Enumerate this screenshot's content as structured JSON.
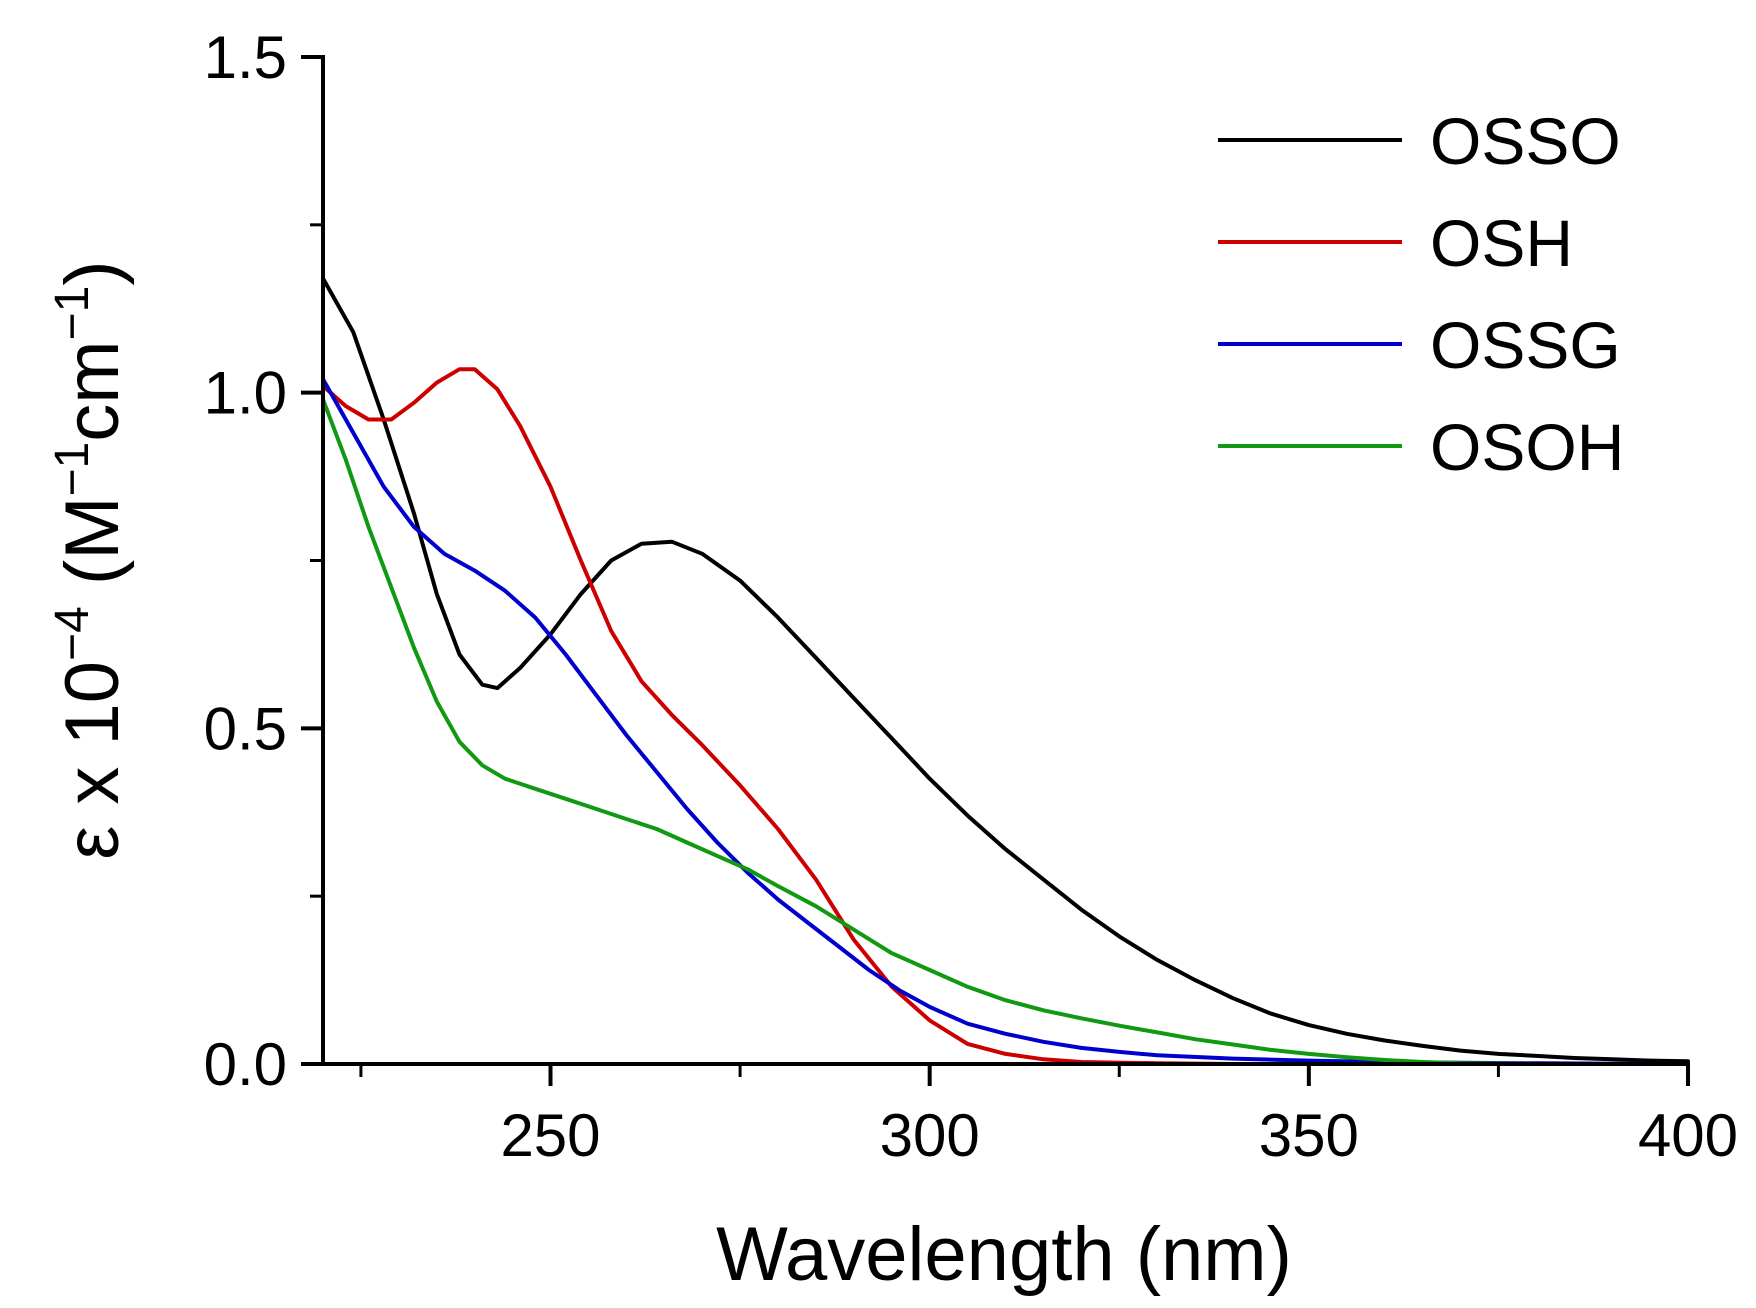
{
  "chart_data": {
    "type": "line",
    "title": "",
    "xlabel": "Wavelength (nm)",
    "ylabel": {
      "prefix": "ε x 10",
      "exp": "−4",
      "unit_open": " (M",
      "unit_exp1": "−1",
      "unit_mid": "cm",
      "unit_exp2": "−1",
      "unit_close": ")"
    },
    "xlim": [
      220,
      400
    ],
    "ylim": [
      0,
      1.5
    ],
    "xticks": [
      250,
      300,
      350,
      400
    ],
    "yticks": [
      0.0,
      0.5,
      1.0,
      1.5
    ],
    "xtick_labels": [
      "250",
      "300",
      "350",
      "400"
    ],
    "ytick_labels": [
      "0.0",
      "0.5",
      "1.0",
      "1.5"
    ],
    "legend_position": "top-right",
    "series": [
      {
        "name": "OSSO",
        "color": "#000000",
        "points": [
          [
            220,
            1.17
          ],
          [
            224,
            1.09
          ],
          [
            228,
            0.96
          ],
          [
            232,
            0.82
          ],
          [
            235,
            0.7
          ],
          [
            238,
            0.61
          ],
          [
            241,
            0.565
          ],
          [
            243,
            0.56
          ],
          [
            246,
            0.59
          ],
          [
            250,
            0.64
          ],
          [
            254,
            0.7
          ],
          [
            258,
            0.75
          ],
          [
            262,
            0.775
          ],
          [
            266,
            0.778
          ],
          [
            270,
            0.76
          ],
          [
            275,
            0.72
          ],
          [
            280,
            0.665
          ],
          [
            285,
            0.605
          ],
          [
            290,
            0.545
          ],
          [
            295,
            0.485
          ],
          [
            300,
            0.425
          ],
          [
            305,
            0.37
          ],
          [
            310,
            0.32
          ],
          [
            315,
            0.275
          ],
          [
            320,
            0.23
          ],
          [
            325,
            0.19
          ],
          [
            330,
            0.155
          ],
          [
            335,
            0.125
          ],
          [
            340,
            0.098
          ],
          [
            345,
            0.075
          ],
          [
            350,
            0.058
          ],
          [
            355,
            0.045
          ],
          [
            360,
            0.035
          ],
          [
            365,
            0.027
          ],
          [
            370,
            0.02
          ],
          [
            375,
            0.015
          ],
          [
            380,
            0.012
          ],
          [
            385,
            0.009
          ],
          [
            390,
            0.007
          ],
          [
            395,
            0.005
          ],
          [
            400,
            0.004
          ]
        ]
      },
      {
        "name": "OSH",
        "color": "#cc0000",
        "points": [
          [
            220,
            1.01
          ],
          [
            223,
            0.98
          ],
          [
            226,
            0.96
          ],
          [
            229,
            0.96
          ],
          [
            232,
            0.985
          ],
          [
            235,
            1.015
          ],
          [
            238,
            1.035
          ],
          [
            240,
            1.035
          ],
          [
            243,
            1.005
          ],
          [
            246,
            0.95
          ],
          [
            250,
            0.86
          ],
          [
            254,
            0.75
          ],
          [
            258,
            0.645
          ],
          [
            262,
            0.57
          ],
          [
            266,
            0.52
          ],
          [
            270,
            0.475
          ],
          [
            275,
            0.415
          ],
          [
            280,
            0.35
          ],
          [
            285,
            0.275
          ],
          [
            290,
            0.185
          ],
          [
            295,
            0.115
          ],
          [
            300,
            0.065
          ],
          [
            305,
            0.03
          ],
          [
            310,
            0.015
          ],
          [
            315,
            0.007
          ],
          [
            320,
            0.003
          ],
          [
            330,
            0.001
          ],
          [
            340,
            0.0
          ],
          [
            360,
            0.0
          ],
          [
            380,
            0.0
          ],
          [
            400,
            0.0
          ]
        ]
      },
      {
        "name": "OSSG",
        "color": "#0000cc",
        "points": [
          [
            220,
            1.02
          ],
          [
            224,
            0.94
          ],
          [
            228,
            0.86
          ],
          [
            232,
            0.8
          ],
          [
            236,
            0.76
          ],
          [
            240,
            0.735
          ],
          [
            244,
            0.705
          ],
          [
            248,
            0.665
          ],
          [
            252,
            0.61
          ],
          [
            256,
            0.55
          ],
          [
            260,
            0.49
          ],
          [
            264,
            0.435
          ],
          [
            268,
            0.38
          ],
          [
            272,
            0.33
          ],
          [
            276,
            0.285
          ],
          [
            280,
            0.245
          ],
          [
            284,
            0.21
          ],
          [
            288,
            0.175
          ],
          [
            292,
            0.14
          ],
          [
            296,
            0.11
          ],
          [
            300,
            0.085
          ],
          [
            305,
            0.06
          ],
          [
            310,
            0.045
          ],
          [
            315,
            0.033
          ],
          [
            320,
            0.024
          ],
          [
            325,
            0.018
          ],
          [
            330,
            0.013
          ],
          [
            340,
            0.008
          ],
          [
            350,
            0.005
          ],
          [
            360,
            0.003
          ],
          [
            370,
            0.002
          ],
          [
            380,
            0.001
          ],
          [
            400,
            0.0
          ]
        ]
      },
      {
        "name": "OSOH",
        "color": "#119911",
        "points": [
          [
            220,
            0.99
          ],
          [
            223,
            0.9
          ],
          [
            226,
            0.8
          ],
          [
            229,
            0.71
          ],
          [
            232,
            0.62
          ],
          [
            235,
            0.54
          ],
          [
            238,
            0.48
          ],
          [
            241,
            0.445
          ],
          [
            244,
            0.425
          ],
          [
            248,
            0.41
          ],
          [
            252,
            0.395
          ],
          [
            256,
            0.38
          ],
          [
            260,
            0.365
          ],
          [
            264,
            0.35
          ],
          [
            268,
            0.33
          ],
          [
            272,
            0.31
          ],
          [
            276,
            0.29
          ],
          [
            280,
            0.265
          ],
          [
            285,
            0.235
          ],
          [
            290,
            0.2
          ],
          [
            295,
            0.165
          ],
          [
            300,
            0.14
          ],
          [
            305,
            0.115
          ],
          [
            310,
            0.095
          ],
          [
            315,
            0.08
          ],
          [
            320,
            0.068
          ],
          [
            325,
            0.057
          ],
          [
            330,
            0.047
          ],
          [
            335,
            0.037
          ],
          [
            340,
            0.029
          ],
          [
            345,
            0.021
          ],
          [
            350,
            0.015
          ],
          [
            355,
            0.01
          ],
          [
            360,
            0.006
          ],
          [
            365,
            0.003
          ],
          [
            370,
            0.001
          ],
          [
            380,
            0.0
          ],
          [
            390,
            0.0
          ],
          [
            400,
            0.0
          ]
        ]
      }
    ]
  }
}
